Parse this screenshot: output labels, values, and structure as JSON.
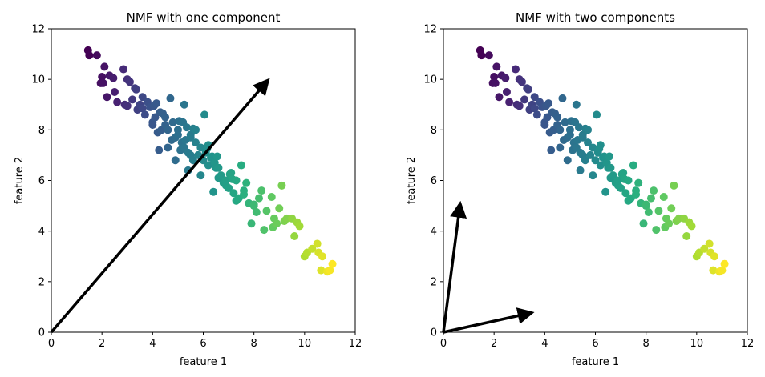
{
  "chart_data": [
    {
      "type": "scatter",
      "title": "NMF with one component",
      "xlabel": "feature 1",
      "ylabel": "feature 2",
      "xlim": [
        0,
        12
      ],
      "ylim": [
        0,
        12
      ],
      "xticks": [
        "0",
        "2",
        "4",
        "6",
        "8",
        "10",
        "12"
      ],
      "yticks": [
        "0",
        "2",
        "4",
        "6",
        "8",
        "10",
        "12"
      ],
      "grid": false,
      "colormap": "viridis",
      "arrows": [
        {
          "x0": 0,
          "y0": 0,
          "x1": 8.5,
          "y1": 9.9
        }
      ]
    },
    {
      "type": "scatter",
      "title": "NMF with two components",
      "xlabel": "feature 1",
      "ylabel": "feature 2",
      "xlim": [
        0,
        12
      ],
      "ylim": [
        0,
        12
      ],
      "xticks": [
        "0",
        "2",
        "4",
        "6",
        "8",
        "10",
        "12"
      ],
      "yticks": [
        "0",
        "2",
        "4",
        "6",
        "8",
        "10",
        "12"
      ],
      "grid": false,
      "colormap": "viridis",
      "arrows": [
        {
          "x0": 0,
          "y0": 0,
          "x1": 0.65,
          "y1": 5.0
        },
        {
          "x0": 0,
          "y0": 0,
          "x1": 3.4,
          "y1": 0.75
        }
      ]
    }
  ],
  "points": {
    "x": [
      1.45,
      1.5,
      1.8,
      2.0,
      2.1,
      2.3,
      2.5,
      2.85,
      3.0,
      3.1,
      1.95,
      2.05,
      2.2,
      2.6,
      2.9,
      3.2,
      3.4,
      3.5,
      3.7,
      3.9,
      4.0,
      4.1,
      4.2,
      4.35,
      4.5,
      4.6,
      4.75,
      4.9,
      5.0,
      5.15,
      5.3,
      5.1,
      5.25,
      5.4,
      5.5,
      5.6,
      5.8,
      6.0,
      6.2,
      6.45,
      5.2,
      5.35,
      5.5,
      5.7,
      5.9,
      6.1,
      6.3,
      6.5,
      6.7,
      6.9,
      7.1,
      7.3,
      6.6,
      6.8,
      7.0,
      7.2,
      7.4,
      7.6,
      7.8,
      8.0,
      8.2,
      8.5,
      8.8,
      9.0,
      9.2,
      9.5,
      9.8,
      10.0,
      10.3,
      10.5,
      10.7,
      10.9,
      11.1,
      11.0,
      10.65,
      3.35,
      3.6,
      3.8,
      4.05,
      4.3,
      4.5,
      4.8,
      5.0,
      6.05,
      4.9,
      5.4,
      5.9,
      6.6,
      6.4,
      4.25,
      4.6,
      5.25,
      7.5,
      7.7,
      8.3,
      8.7,
      9.1,
      8.9,
      9.6,
      4.7,
      5.7,
      6.2,
      6.9,
      7.3,
      7.9,
      3.0,
      3.6,
      4.4,
      4.0,
      5.05,
      5.6,
      6.15,
      6.55,
      7.05,
      7.6,
      8.1,
      8.4,
      8.75,
      9.3,
      9.7,
      10.1,
      10.55,
      2.45,
      3.3,
      4.15,
      5.5,
      6.35,
      7.15,
      8.0
    ],
    "y": [
      11.15,
      10.95,
      10.95,
      10.1,
      10.5,
      10.15,
      9.5,
      10.4,
      10.0,
      9.9,
      9.85,
      9.85,
      9.3,
      9.1,
      9.0,
      9.2,
      8.8,
      9.0,
      8.6,
      8.9,
      8.3,
      8.5,
      7.9,
      8.0,
      8.2,
      8.0,
      7.6,
      7.7,
      7.8,
      7.5,
      7.6,
      7.2,
      7.3,
      7.1,
      7.0,
      6.8,
      7.0,
      6.8,
      6.6,
      6.7,
      8.3,
      8.1,
      7.8,
      7.5,
      7.3,
      7.1,
      6.9,
      6.5,
      6.2,
      6.0,
      6.3,
      6.0,
      6.1,
      5.9,
      5.7,
      5.5,
      5.3,
      5.6,
      5.1,
      5.0,
      5.3,
      4.8,
      4.5,
      4.9,
      4.4,
      4.5,
      4.2,
      3.0,
      3.3,
      3.5,
      3.0,
      2.4,
      2.7,
      2.45,
      2.45,
      9.6,
      9.3,
      9.1,
      8.95,
      8.7,
      8.5,
      8.3,
      8.0,
      8.6,
      6.8,
      6.4,
      6.2,
      6.5,
      5.55,
      7.2,
      7.3,
      9.0,
      6.6,
      5.9,
      5.6,
      5.35,
      5.8,
      4.3,
      3.8,
      9.25,
      8.0,
      7.4,
      5.8,
      5.2,
      4.3,
      8.95,
      8.85,
      8.65,
      8.2,
      8.35,
      8.05,
      7.25,
      6.95,
      6.25,
      5.45,
      4.75,
      4.05,
      4.15,
      4.5,
      4.35,
      3.15,
      3.15,
      10.05,
      9.65,
      9.05,
      7.7,
      6.95,
      6.05,
      5.05
    ]
  }
}
